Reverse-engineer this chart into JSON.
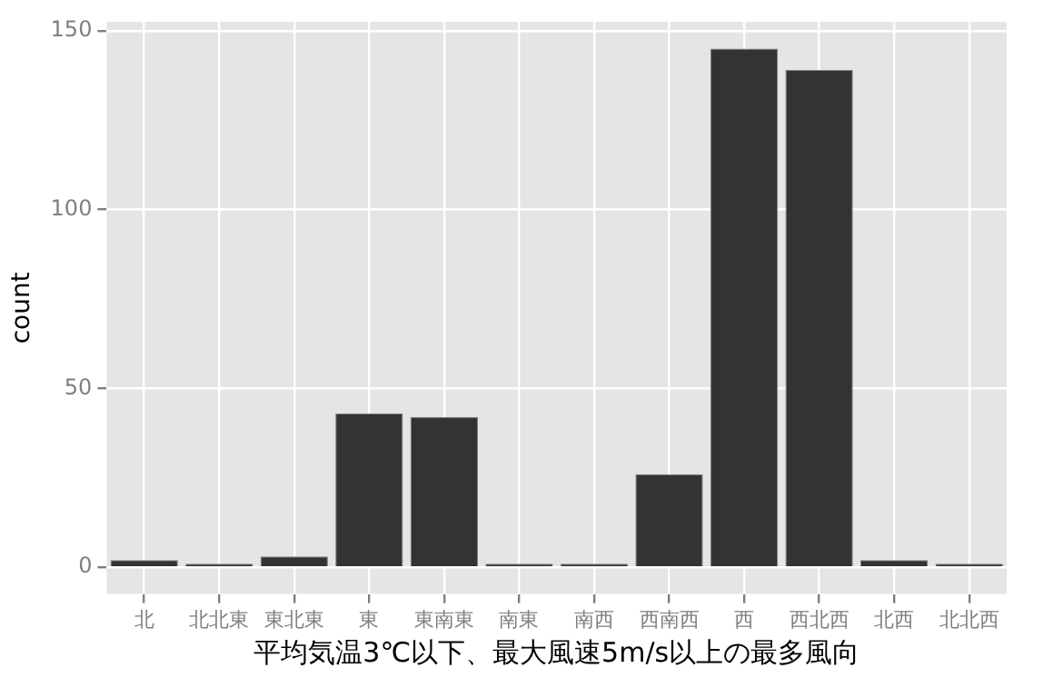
{
  "chart_data": {
    "type": "bar",
    "xlabel": "平均気温3℃以下、最大風速5m/s以上の最多風向",
    "ylabel": "count",
    "categories": [
      "北",
      "北北東",
      "東北東",
      "東",
      "東南東",
      "南東",
      "南西",
      "西南西",
      "西",
      "西北西",
      "北西",
      "北北西"
    ],
    "values": [
      2,
      1,
      3,
      43,
      42,
      1,
      1,
      26,
      145,
      139,
      2,
      1
    ],
    "color": "#333333",
    "ylim": [
      -7.5,
      152.5
    ],
    "yticks": [
      0,
      50,
      100,
      150
    ],
    "grid": true,
    "legend": false
  }
}
